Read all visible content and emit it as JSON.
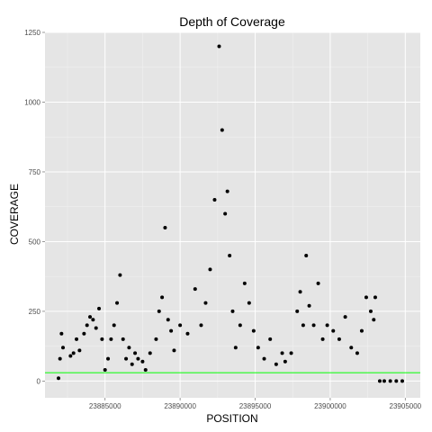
{
  "chart_data": {
    "type": "scatter",
    "title": "Depth of Coverage",
    "xlabel": "POSITION",
    "ylabel": "COVERAGE",
    "xlim": [
      23881000,
      23906000
    ],
    "ylim": [
      -60,
      1250
    ],
    "x_ticks": [
      23885000,
      23890000,
      23895000,
      23900000,
      23905000
    ],
    "x_tick_labels": [
      "23885000",
      "23890000",
      "23895000",
      "23900000",
      "23905000"
    ],
    "y_ticks": [
      0,
      250,
      500,
      750,
      1000,
      1250
    ],
    "y_tick_labels": [
      "0",
      "250",
      "500",
      "750",
      "1000",
      "1250"
    ],
    "grid": true,
    "panel_background": "#e5e5e5",
    "point_color": "#000000",
    "reference_line": {
      "y": 30,
      "color": "#00ff00"
    },
    "series": [
      {
        "x": [
          23881900,
          23882000,
          23882100,
          23882200,
          23882700,
          23882900,
          23883100,
          23883300,
          23883600,
          23883800,
          23884000,
          23884200,
          23884400,
          23884600,
          23884800,
          23885000,
          23885200,
          23885400,
          23885600,
          23885800,
          23886000,
          23886200,
          23886400,
          23886600,
          23886800,
          23887000,
          23887200,
          23887500,
          23887700,
          23888000,
          23888400,
          23888600,
          23888800,
          23889000,
          23889200,
          23889400,
          23889600,
          23890000,
          23890500,
          23891000,
          23891400,
          23891700,
          23892000,
          23892300,
          23892600,
          23892800,
          23893000,
          23893150,
          23893300,
          23893500,
          23893700,
          23894000,
          23894300,
          23894600,
          23894900,
          23895200,
          23895600,
          23896000,
          23896400,
          23896800,
          23897000,
          23897400,
          23897800,
          23898000,
          23898200,
          23898400,
          23898600,
          23898900,
          23899200,
          23899500,
          23899800,
          23900200,
          23900600,
          23901000,
          23901400,
          23901800,
          23902100,
          23902400,
          23902700,
          23902900,
          23903000,
          23903300,
          23903600,
          23904000,
          23904400,
          23904800
        ],
        "y": [
          10,
          80,
          170,
          120,
          90,
          100,
          150,
          110,
          170,
          200,
          230,
          220,
          190,
          260,
          150,
          40,
          80,
          150,
          200,
          280,
          380,
          150,
          80,
          120,
          60,
          100,
          80,
          70,
          40,
          100,
          150,
          250,
          300,
          550,
          220,
          180,
          110,
          200,
          170,
          330,
          200,
          280,
          400,
          650,
          1200,
          900,
          600,
          680,
          450,
          250,
          120,
          200,
          350,
          280,
          180,
          120,
          80,
          150,
          60,
          100,
          70,
          100,
          250,
          320,
          200,
          450,
          270,
          200,
          350,
          150,
          200,
          180,
          150,
          230,
          120,
          100,
          180,
          300,
          250,
          220,
          300,
          0,
          0,
          0,
          0,
          0
        ]
      }
    ]
  }
}
